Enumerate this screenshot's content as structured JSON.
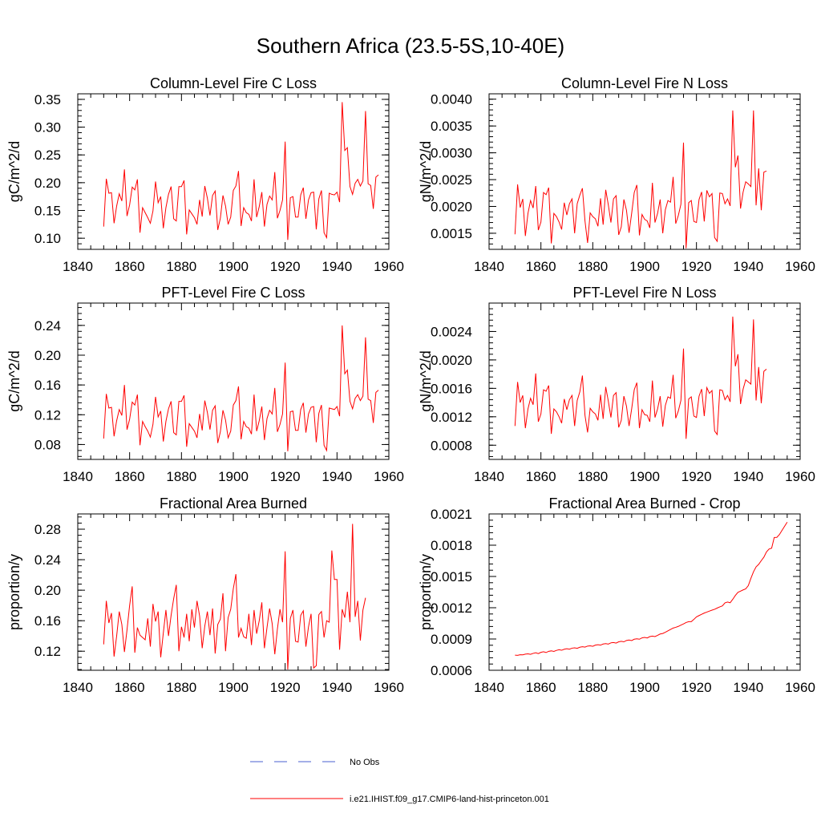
{
  "figure": {
    "title": "Southern Africa (23.5-5S,10-40E)",
    "series_color": "#ff0000",
    "obs_color": "#4a5fd0"
  },
  "legend": {
    "items": [
      {
        "label": "No Obs",
        "style": "dashed",
        "color": "#4a5fd0"
      },
      {
        "label": "i.e21.IHIST.f09_g17.CMIP6-land-hist-princeton.001",
        "style": "solid",
        "color": "#ff0000"
      }
    ]
  },
  "chart_data": [
    {
      "type": "line",
      "title": "Column-Level Fire C Loss",
      "ylabel": "gC/m^2/d",
      "xlim": [
        1840,
        1960
      ],
      "ylim": [
        0.08,
        0.36
      ],
      "xticks": [
        1840,
        1860,
        1880,
        1900,
        1920,
        1940,
        1960
      ],
      "yticks": [
        0.1,
        0.15,
        0.2,
        0.25,
        0.3,
        0.35
      ],
      "ytick_labels": [
        "0.10",
        "0.15",
        "0.20",
        "0.25",
        "0.30",
        "0.35"
      ],
      "x_start": 1850,
      "series": [
        {
          "values": [
            0.121,
            0.207,
            0.181,
            0.182,
            0.127,
            0.158,
            0.18,
            0.167,
            0.224,
            0.14,
            0.16,
            0.192,
            0.187,
            0.206,
            0.11,
            0.155,
            0.146,
            0.137,
            0.127,
            0.149,
            0.202,
            0.164,
            0.175,
            0.118,
            0.155,
            0.179,
            0.193,
            0.135,
            0.131,
            0.193,
            0.193,
            0.204,
            0.107,
            0.151,
            0.144,
            0.137,
            0.125,
            0.169,
            0.139,
            0.194,
            0.172,
            0.141,
            0.177,
            0.185,
            0.115,
            0.136,
            0.177,
            0.158,
            0.125,
            0.138,
            0.186,
            0.194,
            0.221,
            0.122,
            0.155,
            0.146,
            0.143,
            0.131,
            0.206,
            0.138,
            0.157,
            0.183,
            0.121,
            0.161,
            0.176,
            0.169,
            0.219,
            0.136,
            0.15,
            0.169,
            0.274,
            0.097,
            0.173,
            0.175,
            0.138,
            0.138,
            0.178,
            0.191,
            0.135,
            0.169,
            0.182,
            0.183,
            0.116,
            0.171,
            0.186,
            0.11,
            0.101,
            0.181,
            0.179,
            0.178,
            0.183,
            0.165,
            0.345,
            0.258,
            0.263,
            0.193,
            0.179,
            0.199,
            0.206,
            0.194,
            0.203,
            0.329,
            0.198,
            0.195,
            0.153,
            0.21,
            0.214
          ]
        }
      ]
    },
    {
      "type": "line",
      "title": "Column-Level Fire N Loss",
      "ylabel": "gN/m^2/d",
      "xlim": [
        1840,
        1960
      ],
      "ylim": [
        0.0012,
        0.0041
      ],
      "xticks": [
        1840,
        1860,
        1880,
        1900,
        1920,
        1940,
        1960
      ],
      "yticks": [
        0.0015,
        0.002,
        0.0025,
        0.003,
        0.0035,
        0.004
      ],
      "ytick_labels": [
        "0.0015",
        "0.0020",
        "0.0025",
        "0.0030",
        "0.0035",
        "0.0040"
      ],
      "x_start": 1850,
      "series": [
        {
          "values": [
            0.00148,
            0.00241,
            0.00198,
            0.00214,
            0.00145,
            0.00187,
            0.00211,
            0.00197,
            0.00238,
            0.00156,
            0.00171,
            0.00226,
            0.00222,
            0.00235,
            0.00131,
            0.00187,
            0.00181,
            0.00171,
            0.00157,
            0.00207,
            0.00184,
            0.00205,
            0.00214,
            0.0015,
            0.00205,
            0.00221,
            0.00234,
            0.00173,
            0.00132,
            0.00188,
            0.00181,
            0.00177,
            0.00163,
            0.00215,
            0.00166,
            0.00231,
            0.00203,
            0.0017,
            0.00214,
            0.0022,
            0.00147,
            0.00162,
            0.00213,
            0.00193,
            0.00151,
            0.00187,
            0.00226,
            0.0024,
            0.00146,
            0.00185,
            0.00176,
            0.00173,
            0.0016,
            0.00244,
            0.0017,
            0.00187,
            0.00213,
            0.0015,
            0.00194,
            0.00211,
            0.00208,
            0.00255,
            0.00168,
            0.00183,
            0.00204,
            0.00319,
            0.00122,
            0.00207,
            0.00211,
            0.00172,
            0.0017,
            0.00213,
            0.00227,
            0.00172,
            0.0023,
            0.00218,
            0.00224,
            0.00142,
            0.00135,
            0.00225,
            0.00224,
            0.00205,
            0.00214,
            0.00201,
            0.00379,
            0.00273,
            0.00295,
            0.00196,
            0.00227,
            0.00246,
            0.00242,
            0.00237,
            0.00379,
            0.00202,
            0.00271,
            0.00193,
            0.00264,
            0.00266
          ]
        }
      ]
    },
    {
      "type": "line",
      "title": "PFT-Level Fire C Loss",
      "ylabel": "gC/m^2/d",
      "xlim": [
        1840,
        1960
      ],
      "ylim": [
        0.06,
        0.27
      ],
      "xticks": [
        1840,
        1860,
        1880,
        1900,
        1920,
        1940,
        1960
      ],
      "yticks": [
        0.08,
        0.12,
        0.16,
        0.2,
        0.24
      ],
      "ytick_labels": [
        "0.08",
        "0.12",
        "0.16",
        "0.20",
        "0.24"
      ],
      "x_start": 1850,
      "series": [
        {
          "values": [
            0.088,
            0.148,
            0.129,
            0.13,
            0.091,
            0.112,
            0.127,
            0.119,
            0.16,
            0.1,
            0.114,
            0.137,
            0.133,
            0.147,
            0.079,
            0.111,
            0.104,
            0.098,
            0.09,
            0.107,
            0.144,
            0.117,
            0.125,
            0.084,
            0.111,
            0.128,
            0.138,
            0.096,
            0.093,
            0.138,
            0.138,
            0.146,
            0.077,
            0.108,
            0.103,
            0.098,
            0.089,
            0.121,
            0.099,
            0.139,
            0.123,
            0.1,
            0.126,
            0.132,
            0.082,
            0.097,
            0.126,
            0.113,
            0.089,
            0.098,
            0.133,
            0.139,
            0.158,
            0.087,
            0.111,
            0.104,
            0.102,
            0.094,
            0.147,
            0.098,
            0.112,
            0.131,
            0.086,
            0.115,
            0.126,
            0.121,
            0.156,
            0.097,
            0.107,
            0.121,
            0.19,
            0.071,
            0.124,
            0.125,
            0.099,
            0.099,
            0.127,
            0.136,
            0.096,
            0.121,
            0.13,
            0.131,
            0.083,
            0.122,
            0.133,
            0.079,
            0.072,
            0.129,
            0.128,
            0.127,
            0.131,
            0.118,
            0.24,
            0.175,
            0.18,
            0.138,
            0.128,
            0.142,
            0.147,
            0.139,
            0.145,
            0.224,
            0.141,
            0.139,
            0.109,
            0.15,
            0.153
          ]
        }
      ]
    },
    {
      "type": "line",
      "title": "PFT-Level Fire N Loss",
      "ylabel": "gN/m^2/d",
      "xlim": [
        1840,
        1960
      ],
      "ylim": [
        0.0006,
        0.0028
      ],
      "xticks": [
        1840,
        1860,
        1880,
        1900,
        1920,
        1940,
        1960
      ],
      "yticks": [
        0.0008,
        0.0012,
        0.0016,
        0.002,
        0.0024
      ],
      "ytick_labels": [
        "0.0008",
        "0.0012",
        "0.0016",
        "0.0020",
        "0.0024"
      ],
      "x_start": 1850,
      "series": [
        {
          "values": [
            0.00107,
            0.00169,
            0.0014,
            0.0015,
            0.00104,
            0.00131,
            0.00146,
            0.00137,
            0.00181,
            0.00113,
            0.00124,
            0.00158,
            0.00156,
            0.00164,
            0.00096,
            0.00131,
            0.00127,
            0.0012,
            0.00111,
            0.00145,
            0.0013,
            0.00144,
            0.0015,
            0.00107,
            0.00143,
            0.00155,
            0.00178,
            0.00122,
            0.00098,
            0.00132,
            0.00127,
            0.00124,
            0.00115,
            0.00151,
            0.00117,
            0.00162,
            0.00142,
            0.00119,
            0.0015,
            0.00154,
            0.00105,
            0.00115,
            0.00149,
            0.00135,
            0.00107,
            0.00131,
            0.00158,
            0.00168,
            0.00104,
            0.0013,
            0.00123,
            0.00122,
            0.00113,
            0.00171,
            0.00119,
            0.00131,
            0.00149,
            0.00106,
            0.00136,
            0.00148,
            0.00146,
            0.00179,
            0.00118,
            0.00128,
            0.00143,
            0.00216,
            0.00089,
            0.00145,
            0.00148,
            0.00121,
            0.00119,
            0.00149,
            0.00159,
            0.00121,
            0.00161,
            0.00153,
            0.00157,
            0.001,
            0.00095,
            0.00158,
            0.00157,
            0.00144,
            0.0015,
            0.00141,
            0.00261,
            0.00191,
            0.00208,
            0.00138,
            0.00159,
            0.00172,
            0.00169,
            0.00166,
            0.00257,
            0.00143,
            0.0019,
            0.00139,
            0.00184,
            0.00187
          ]
        }
      ]
    },
    {
      "type": "line",
      "title": "Fractional Area Burned",
      "ylabel": "proportion/y",
      "xlim": [
        1840,
        1960
      ],
      "ylim": [
        0.095,
        0.3
      ],
      "xticks": [
        1840,
        1860,
        1880,
        1900,
        1920,
        1940,
        1960
      ],
      "yticks": [
        0.12,
        0.16,
        0.2,
        0.24,
        0.28
      ],
      "ytick_labels": [
        "0.12",
        "0.16",
        "0.20",
        "0.24",
        "0.28"
      ],
      "x_start": 1850,
      "series": [
        {
          "values": [
            0.129,
            0.186,
            0.157,
            0.17,
            0.113,
            0.14,
            0.172,
            0.155,
            0.119,
            0.148,
            0.18,
            0.205,
            0.118,
            0.151,
            0.141,
            0.138,
            0.135,
            0.163,
            0.126,
            0.182,
            0.159,
            0.172,
            0.112,
            0.144,
            0.174,
            0.14,
            0.167,
            0.189,
            0.207,
            0.12,
            0.152,
            0.138,
            0.169,
            0.133,
            0.175,
            0.151,
            0.186,
            0.166,
            0.124,
            0.153,
            0.172,
            0.141,
            0.176,
            0.117,
            0.155,
            0.162,
            0.196,
            0.12,
            0.164,
            0.175,
            0.202,
            0.221,
            0.138,
            0.15,
            0.139,
            0.137,
            0.169,
            0.128,
            0.174,
            0.143,
            0.16,
            0.184,
            0.124,
            0.151,
            0.176,
            0.156,
            0.116,
            0.149,
            0.175,
            0.158,
            0.251,
            0.096,
            0.163,
            0.174,
            0.133,
            0.132,
            0.167,
            0.173,
            0.126,
            0.152,
            0.169,
            0.098,
            0.101,
            0.168,
            0.172,
            0.138,
            0.16,
            0.158,
            0.252,
            0.214,
            0.214,
            0.122,
            0.175,
            0.164,
            0.198,
            0.158,
            0.287,
            0.165,
            0.186,
            0.134,
            0.174,
            0.19
          ]
        }
      ]
    },
    {
      "type": "line",
      "title": "Fractional Area Burned - Crop",
      "ylabel": "proportion/y",
      "xlim": [
        1840,
        1960
      ],
      "ylim": [
        0.0006,
        0.0021
      ],
      "xticks": [
        1840,
        1860,
        1880,
        1900,
        1920,
        1940,
        1960
      ],
      "yticks": [
        0.0006,
        0.0009,
        0.0012,
        0.0015,
        0.0018,
        0.0021
      ],
      "ytick_labels": [
        "0.0006",
        "0.0009",
        "0.0012",
        "0.0015",
        "0.0018",
        "0.0021"
      ],
      "x_start": 1850,
      "series": [
        {
          "values": [
            0.000745,
            0.000743,
            0.000749,
            0.000748,
            0.000755,
            0.000758,
            0.000753,
            0.000762,
            0.000768,
            0.00076,
            0.000772,
            0.000778,
            0.00077,
            0.000782,
            0.000786,
            0.000781,
            0.000791,
            0.000797,
            0.000792,
            0.000802,
            0.000807,
            0.000802,
            0.000812,
            0.000815,
            0.000811,
            0.000821,
            0.000826,
            0.000822,
            0.000832,
            0.000835,
            0.00083,
            0.000841,
            0.000845,
            0.000841,
            0.000852,
            0.000856,
            0.000851,
            0.000863,
            0.000866,
            0.000861,
            0.000873,
            0.000878,
            0.000873,
            0.000886,
            0.00089,
            0.000885,
            0.000898,
            0.000902,
            0.000898,
            0.000911,
            0.000915,
            0.00091,
            0.000923,
            0.000928,
            0.000923,
            0.000935,
            0.000948,
            0.000953,
            0.000965,
            0.000978,
            0.000992,
            0.001005,
            0.001012,
            0.001021,
            0.001033,
            0.001045,
            0.001058,
            0.001066,
            0.001066,
            0.001088,
            0.001112,
            0.001125,
            0.001137,
            0.001149,
            0.001158,
            0.001168,
            0.001177,
            0.001185,
            0.001197,
            0.001208,
            0.001218,
            0.001247,
            0.001255,
            0.001248,
            0.001281,
            0.001318,
            0.001348,
            0.001359,
            0.001371,
            0.001381,
            0.001412,
            0.001482,
            0.001545,
            0.001592,
            0.001616,
            0.001652,
            0.001685,
            0.001735,
            0.001763,
            0.001771,
            0.001874,
            0.001875,
            0.001902,
            0.001942,
            0.001982,
            0.002021
          ]
        }
      ]
    }
  ]
}
